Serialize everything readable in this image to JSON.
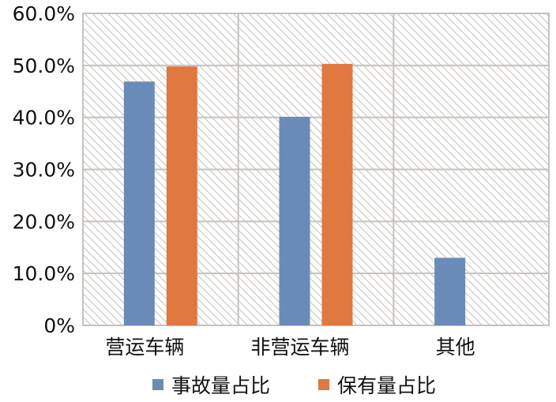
{
  "chart_data": {
    "type": "bar",
    "categories": [
      "营运车辆",
      "非营运车辆",
      "其他"
    ],
    "series": [
      {
        "name": "事故量占比",
        "values": [
          46.9,
          40.1,
          13.0
        ],
        "color": "#6a8bb8"
      },
      {
        "name": "保有量占比",
        "values": [
          49.8,
          50.3,
          null
        ],
        "color": "#e07840"
      }
    ],
    "yticks": [
      "0%",
      "10.0%",
      "20.0%",
      "30.0%",
      "40.0%",
      "50.0%",
      "60.0%"
    ],
    "ylim": [
      0,
      60
    ],
    "grid": true,
    "legend": "bottom",
    "background": "diagonal-hatch"
  }
}
